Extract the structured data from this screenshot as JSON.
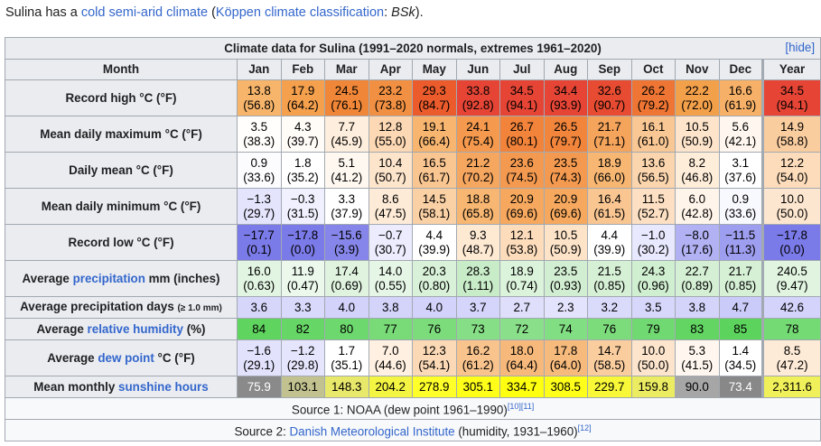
{
  "intro": {
    "prefix": "Sulina has a ",
    "link1": "cold semi-arid climate",
    "mid": " (",
    "link2": "Köppen climate classification",
    "colon": ": ",
    "code": "BSk",
    "suffix": ")."
  },
  "table": {
    "caption": "Climate data for Sulina (1991–2020 normals, extremes 1961–2020)",
    "hide_label": "[hide]",
    "header": [
      "Month",
      "Jan",
      "Feb",
      "Mar",
      "Apr",
      "May",
      "Jun",
      "Jul",
      "Aug",
      "Sep",
      "Oct",
      "Nov",
      "Dec",
      "Year"
    ],
    "rows": [
      {
        "label_parts": [
          {
            "text": "Record high °C (°F)"
          }
        ],
        "type": "double",
        "cells": [
          {
            "a": "13.8",
            "b": "(56.8)",
            "bg": "#f7b56b"
          },
          {
            "a": "17.9",
            "b": "(64.2)",
            "bg": "#f4a04d"
          },
          {
            "a": "24.5",
            "b": "(76.1)",
            "bg": "#f08637"
          },
          {
            "a": "23.2",
            "b": "(73.8)",
            "bg": "#f19042"
          },
          {
            "a": "29.3",
            "b": "(84.7)",
            "bg": "#ec5b2c"
          },
          {
            "a": "33.8",
            "b": "(92.8)",
            "bg": "#e64535"
          },
          {
            "a": "34.5",
            "b": "(94.1)",
            "bg": "#e64535"
          },
          {
            "a": "34.4",
            "b": "(93.9)",
            "bg": "#e64535"
          },
          {
            "a": "32.6",
            "b": "(90.7)",
            "bg": "#e74b31"
          },
          {
            "a": "26.2",
            "b": "(79.2)",
            "bg": "#ee7533"
          },
          {
            "a": "22.2",
            "b": "(72.0)",
            "bg": "#f3a04a"
          },
          {
            "a": "16.6",
            "b": "(61.9)",
            "bg": "#f6b067"
          },
          {
            "a": "34.5",
            "b": "(94.1)",
            "bg": "#e64535"
          }
        ]
      },
      {
        "label_parts": [
          {
            "text": "Mean daily maximum °C (°F)"
          }
        ],
        "type": "double",
        "cells": [
          {
            "a": "3.5",
            "b": "(38.3)",
            "bg": "#fffefc"
          },
          {
            "a": "4.3",
            "b": "(39.7)",
            "bg": "#fffcf8"
          },
          {
            "a": "7.7",
            "b": "(45.9)",
            "bg": "#feeedd"
          },
          {
            "a": "12.8",
            "b": "(55.0)",
            "bg": "#fcd8b4"
          },
          {
            "a": "19.1",
            "b": "(66.4)",
            "bg": "#f7b570"
          },
          {
            "a": "24.1",
            "b": "(75.4)",
            "bg": "#f4994d"
          },
          {
            "a": "26.7",
            "b": "(80.1)",
            "bg": "#f2833a"
          },
          {
            "a": "26.5",
            "b": "(79.7)",
            "bg": "#f2853c"
          },
          {
            "a": "21.7",
            "b": "(71.1)",
            "bg": "#f5a45c"
          },
          {
            "a": "16.1",
            "b": "(61.0)",
            "bg": "#f9c794"
          },
          {
            "a": "10.5",
            "b": "(50.9)",
            "bg": "#fde4cb"
          },
          {
            "a": "5.6",
            "b": "(42.1)",
            "bg": "#fff7ef"
          },
          {
            "a": "14.9",
            "b": "(58.8)",
            "bg": "#facd9f"
          }
        ]
      },
      {
        "label_parts": [
          {
            "text": "Daily mean °C (°F)"
          }
        ],
        "type": "double",
        "cells": [
          {
            "a": "0.9",
            "b": "(33.6)",
            "bg": "#fcfcff"
          },
          {
            "a": "1.8",
            "b": "(35.2)",
            "bg": "#ffffff"
          },
          {
            "a": "5.1",
            "b": "(41.2)",
            "bg": "#fff8f1"
          },
          {
            "a": "10.4",
            "b": "(50.7)",
            "bg": "#fde5cc"
          },
          {
            "a": "16.5",
            "b": "(61.7)",
            "bg": "#f9c591"
          },
          {
            "a": "21.2",
            "b": "(70.2)",
            "bg": "#f5a65f"
          },
          {
            "a": "23.6",
            "b": "(74.5)",
            "bg": "#f49a50"
          },
          {
            "a": "23.5",
            "b": "(74.3)",
            "bg": "#f49a50"
          },
          {
            "a": "18.9",
            "b": "(66.0)",
            "bg": "#f7b773"
          },
          {
            "a": "13.6",
            "b": "(56.5)",
            "bg": "#fbd5ad"
          },
          {
            "a": "8.2",
            "b": "(46.8)",
            "bg": "#feedd9"
          },
          {
            "a": "3.1",
            "b": "(37.6)",
            "bg": "#ffffff"
          },
          {
            "a": "12.2",
            "b": "(54.0)",
            "bg": "#fcdcbb"
          }
        ]
      },
      {
        "label_parts": [
          {
            "text": "Mean daily minimum °C (°F)"
          }
        ],
        "type": "double",
        "cells": [
          {
            "a": "−1.3",
            "b": "(29.7)",
            "bg": "#e4e4fd"
          },
          {
            "a": "−0.3",
            "b": "(31.5)",
            "bg": "#f0f0fe"
          },
          {
            "a": "3.3",
            "b": "(37.9)",
            "bg": "#ffffff"
          },
          {
            "a": "8.6",
            "b": "(47.5)",
            "bg": "#feebd7"
          },
          {
            "a": "14.5",
            "b": "(58.1)",
            "bg": "#fad0a5"
          },
          {
            "a": "18.8",
            "b": "(65.8)",
            "bg": "#f7b671"
          },
          {
            "a": "20.9",
            "b": "(69.6)",
            "bg": "#f5a85e"
          },
          {
            "a": "20.9",
            "b": "(69.6)",
            "bg": "#f5a85e"
          },
          {
            "a": "16.4",
            "b": "(61.5)",
            "bg": "#f9c692"
          },
          {
            "a": "11.5",
            "b": "(52.7)",
            "bg": "#fde0c3"
          },
          {
            "a": "6.0",
            "b": "(42.8)",
            "bg": "#fff4e9"
          },
          {
            "a": "0.9",
            "b": "(33.6)",
            "bg": "#f8f8ff"
          },
          {
            "a": "10.0",
            "b": "(50.0)",
            "bg": "#fde6cf"
          }
        ]
      },
      {
        "label_parts": [
          {
            "text": "Record low °C (°F)"
          }
        ],
        "type": "double",
        "cells": [
          {
            "a": "−17.7",
            "b": "(0.1)",
            "bg": "#7a7ae8"
          },
          {
            "a": "−17.8",
            "b": "(0.0)",
            "bg": "#7a7ae8"
          },
          {
            "a": "−15.6",
            "b": "(3.9)",
            "bg": "#8686ea"
          },
          {
            "a": "−0.7",
            "b": "(30.7)",
            "bg": "#ececfe"
          },
          {
            "a": "4.4",
            "b": "(39.9)",
            "bg": "#ffffff"
          },
          {
            "a": "9.3",
            "b": "(48.7)",
            "bg": "#fee9d3"
          },
          {
            "a": "12.1",
            "b": "(53.8)",
            "bg": "#fcdcbb"
          },
          {
            "a": "10.5",
            "b": "(50.9)",
            "bg": "#fde3c8"
          },
          {
            "a": "4.4",
            "b": "(39.9)",
            "bg": "#ffffff"
          },
          {
            "a": "−1.0",
            "b": "(30.2)",
            "bg": "#e8e8fe"
          },
          {
            "a": "−8.0",
            "b": "(17.6)",
            "bg": "#b1b1f3"
          },
          {
            "a": "−11.5",
            "b": "(11.3)",
            "bg": "#9e9ef0"
          },
          {
            "a": "−17.8",
            "b": "(0.0)",
            "bg": "#7a7ae8"
          }
        ]
      },
      {
        "label_parts": [
          {
            "text": "Average "
          },
          {
            "text": "precipitation",
            "link": true
          },
          {
            "text": " mm (inches)"
          }
        ],
        "type": "double",
        "cells": [
          {
            "a": "16.0",
            "b": "(0.63)",
            "bg": "#e2f5e2"
          },
          {
            "a": "11.9",
            "b": "(0.47)",
            "bg": "#ebf8eb"
          },
          {
            "a": "17.4",
            "b": "(0.69)",
            "bg": "#dff3df"
          },
          {
            "a": "14.0",
            "b": "(0.55)",
            "bg": "#e6f6e6"
          },
          {
            "a": "20.3",
            "b": "(0.80)",
            "bg": "#d8f1d8"
          },
          {
            "a": "28.3",
            "b": "(1.11)",
            "bg": "#c8ebc8"
          },
          {
            "a": "18.9",
            "b": "(0.74)",
            "bg": "#dbf2db"
          },
          {
            "a": "23.5",
            "b": "(0.93)",
            "bg": "#d2eed2"
          },
          {
            "a": "21.5",
            "b": "(0.85)",
            "bg": "#d6f0d6"
          },
          {
            "a": "24.3",
            "b": "(0.96)",
            "bg": "#d0eed0"
          },
          {
            "a": "22.7",
            "b": "(0.89)",
            "bg": "#d4efd4"
          },
          {
            "a": "21.7",
            "b": "(0.85)",
            "bg": "#d6f0d6"
          },
          {
            "a": "240.5",
            "b": "(9.47)",
            "bg": "#e0f4e0"
          }
        ]
      },
      {
        "label_parts": [
          {
            "text": "Average precipitation days "
          },
          {
            "text": "(≥ 1.0 mm)",
            "small": true
          }
        ],
        "type": "single",
        "cells": [
          {
            "a": "3.6",
            "bg": "#d6d6fb"
          },
          {
            "a": "3.3",
            "bg": "#d9d9fb"
          },
          {
            "a": "4.0",
            "bg": "#d2d2fb"
          },
          {
            "a": "3.8",
            "bg": "#d4d4fb"
          },
          {
            "a": "4.0",
            "bg": "#d2d2fb"
          },
          {
            "a": "3.7",
            "bg": "#d5d5fb"
          },
          {
            "a": "2.7",
            "bg": "#dfdffc"
          },
          {
            "a": "2.3",
            "bg": "#e3e3fd"
          },
          {
            "a": "3.2",
            "bg": "#dadafb"
          },
          {
            "a": "3.5",
            "bg": "#d7d7fb"
          },
          {
            "a": "3.8",
            "bg": "#d4d4fb"
          },
          {
            "a": "4.7",
            "bg": "#cbcbfa"
          },
          {
            "a": "42.6",
            "bg": "#d3d3fb"
          }
        ]
      },
      {
        "label_parts": [
          {
            "text": "Average "
          },
          {
            "text": "relative humidity",
            "link": true
          },
          {
            "text": " (%)"
          }
        ],
        "type": "single",
        "cells": [
          {
            "a": "84",
            "bg": "#5fd45f"
          },
          {
            "a": "82",
            "bg": "#66d666"
          },
          {
            "a": "80",
            "bg": "#6dd86d"
          },
          {
            "a": "77",
            "bg": "#78db78"
          },
          {
            "a": "76",
            "bg": "#7cdc7c"
          },
          {
            "a": "73",
            "bg": "#86df86"
          },
          {
            "a": "72",
            "bg": "#8ae08a"
          },
          {
            "a": "74",
            "bg": "#82de82"
          },
          {
            "a": "76",
            "bg": "#7cdc7c"
          },
          {
            "a": "79",
            "bg": "#71d971"
          },
          {
            "a": "83",
            "bg": "#62d562"
          },
          {
            "a": "85",
            "bg": "#5cd35c"
          },
          {
            "a": "78",
            "bg": "#74da74"
          }
        ]
      },
      {
        "label_parts": [
          {
            "text": "Average "
          },
          {
            "text": "dew point",
            "link": true
          },
          {
            "text": " °C (°F)"
          }
        ],
        "type": "double",
        "cells": [
          {
            "a": "−1.6",
            "b": "(29.1)",
            "bg": "#e2e2fd"
          },
          {
            "a": "−1.2",
            "b": "(29.8)",
            "bg": "#e5e5fd"
          },
          {
            "a": "1.7",
            "b": "(35.1)",
            "bg": "#ffffff"
          },
          {
            "a": "7.0",
            "b": "(44.6)",
            "bg": "#fff0e1"
          },
          {
            "a": "12.3",
            "b": "(54.1)",
            "bg": "#fbd9b6"
          },
          {
            "a": "16.2",
            "b": "(61.2)",
            "bg": "#f8c38d"
          },
          {
            "a": "18.0",
            "b": "(64.4)",
            "bg": "#f6b97b"
          },
          {
            "a": "17.8",
            "b": "(64.0)",
            "bg": "#f7ba7d"
          },
          {
            "a": "14.7",
            "b": "(58.5)",
            "bg": "#facd9f"
          },
          {
            "a": "10.0",
            "b": "(50.0)",
            "bg": "#fde5cd"
          },
          {
            "a": "5.3",
            "b": "(41.5)",
            "bg": "#fff7ef"
          },
          {
            "a": "1.4",
            "b": "(34.5)",
            "bg": "#ffffff"
          },
          {
            "a": "8.5",
            "b": "(47.2)",
            "bg": "#feebd7"
          }
        ]
      },
      {
        "label_parts": [
          {
            "text": "Mean monthly "
          },
          {
            "text": "sunshine hours",
            "link": true
          }
        ],
        "type": "single",
        "cells": [
          {
            "a": "75.9",
            "bg": "#8a8a8a",
            "fg": "#ffffff"
          },
          {
            "a": "103.1",
            "bg": "#c2c290",
            "fg": "#000000"
          },
          {
            "a": "148.3",
            "bg": "#e8e86b",
            "fg": "#000000"
          },
          {
            "a": "204.2",
            "bg": "#f4f443",
            "fg": "#000000"
          },
          {
            "a": "278.9",
            "bg": "#ffff2a",
            "fg": "#000000"
          },
          {
            "a": "305.1",
            "bg": "#ffff1a",
            "fg": "#000000"
          },
          {
            "a": "334.7",
            "bg": "#ffff10",
            "fg": "#000000"
          },
          {
            "a": "308.5",
            "bg": "#ffff1a",
            "fg": "#000000"
          },
          {
            "a": "229.7",
            "bg": "#f8f838",
            "fg": "#000000"
          },
          {
            "a": "159.8",
            "bg": "#ecec63",
            "fg": "#000000"
          },
          {
            "a": "90.0",
            "bg": "#a6a6a6",
            "fg": "#000000"
          },
          {
            "a": "73.4",
            "bg": "#888888",
            "fg": "#ffffff"
          },
          {
            "a": "2,311.6",
            "bg": "#f0f05a",
            "fg": "#000000"
          }
        ]
      }
    ],
    "source1": {
      "text": "Source 1: NOAA (dew point 1961–1990)",
      "refs": "[10][11]"
    },
    "source2": {
      "prefix": "Source 2: ",
      "link": "Danish Meteorological Institute",
      "suffix": " (humidity, 1931–1960)",
      "refs": "[12]"
    }
  }
}
